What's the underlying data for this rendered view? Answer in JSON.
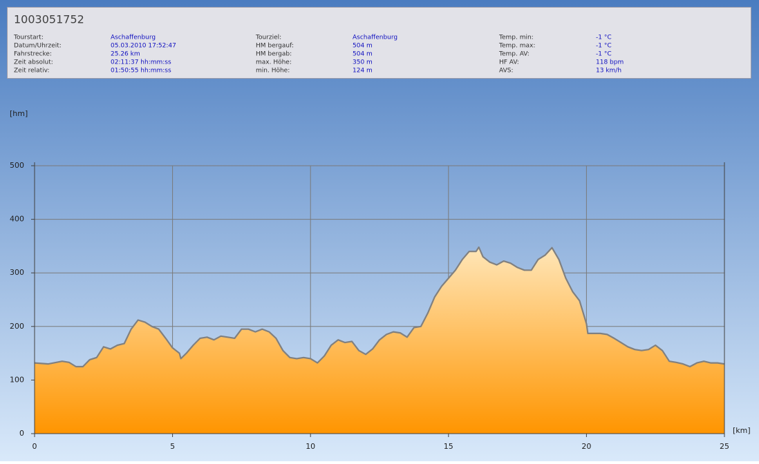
{
  "header": {
    "title": "1003051752",
    "info": [
      [
        {
          "label": "Tourstart:",
          "value": "Aschaffenburg"
        },
        {
          "label": "Datum/Uhrzeit:",
          "value": "05.03.2010 17:52:47"
        },
        {
          "label": "Fahrstrecke:",
          "value": "25.26 km"
        },
        {
          "label": "Zeit absolut:",
          "value": "02:11:37 hh:mm:ss"
        },
        {
          "label": "Zeit relativ:",
          "value": "01:50:55 hh:mm:ss"
        }
      ],
      [
        {
          "label": "Tourziel:",
          "value": "Aschaffenburg"
        },
        {
          "label": "HM bergauf:",
          "value": "504 m"
        },
        {
          "label": "HM bergab:",
          "value": "504 m"
        },
        {
          "label": "max. Höhe:",
          "value": "350 m"
        },
        {
          "label": "min. Höhe:",
          "value": "124 m"
        }
      ],
      [
        {
          "label": "Temp. min:",
          "value": "-1 °C"
        },
        {
          "label": "Temp. max:",
          "value": "-1 °C"
        },
        {
          "label": "Temp. AV:",
          "value": "-1 °C"
        },
        {
          "label": "HF AV:",
          "value": "118 bpm"
        },
        {
          "label": "AVS:",
          "value": "13 km/h"
        }
      ]
    ]
  },
  "chart_data": {
    "type": "area",
    "y_label": "[hm]",
    "x_label": "[km]",
    "x": [
      0,
      0.5,
      1,
      1.25,
      1.5,
      1.75,
      2,
      2.25,
      2.5,
      2.75,
      3,
      3.25,
      3.5,
      3.75,
      4,
      4.25,
      4.5,
      4.75,
      5,
      5.25,
      5.3,
      5.5,
      5.75,
      6,
      6.25,
      6.5,
      6.75,
      7,
      7.25,
      7.5,
      7.75,
      8,
      8.25,
      8.5,
      8.75,
      9,
      9.25,
      9.5,
      9.75,
      10,
      10.25,
      10.5,
      10.75,
      11,
      11.25,
      11.5,
      11.75,
      12,
      12.25,
      12.5,
      12.75,
      13,
      13.25,
      13.5,
      13.75,
      14,
      14.25,
      14.5,
      14.75,
      15,
      15.25,
      15.5,
      15.75,
      16,
      16.1,
      16.25,
      16.5,
      16.75,
      17,
      17.25,
      17.5,
      17.75,
      18,
      18.25,
      18.5,
      18.75,
      19,
      19.25,
      19.5,
      19.75,
      20,
      20.05,
      20.5,
      20.75,
      21,
      21.25,
      21.5,
      21.75,
      22,
      22.25,
      22.5,
      22.75,
      23,
      23.25,
      23.5,
      23.75,
      24,
      24.25,
      24.5,
      24.75,
      25
    ],
    "values": [
      132,
      130,
      135,
      133,
      125,
      125,
      138,
      142,
      162,
      158,
      165,
      168,
      195,
      212,
      208,
      200,
      195,
      178,
      160,
      150,
      140,
      150,
      165,
      178,
      180,
      175,
      182,
      180,
      178,
      195,
      195,
      190,
      195,
      190,
      178,
      155,
      142,
      140,
      142,
      140,
      132,
      145,
      165,
      175,
      170,
      172,
      155,
      148,
      158,
      175,
      185,
      190,
      188,
      180,
      198,
      200,
      225,
      255,
      275,
      290,
      305,
      325,
      340,
      340,
      348,
      330,
      320,
      315,
      322,
      318,
      310,
      305,
      305,
      325,
      333,
      347,
      325,
      290,
      265,
      248,
      205,
      187,
      187,
      185,
      178,
      170,
      162,
      157,
      155,
      157,
      165,
      155,
      135,
      133,
      130,
      125,
      132,
      135,
      132,
      132,
      130
    ],
    "color": "#ff9900",
    "line_color": "#808080",
    "xlim": [
      0,
      25
    ],
    "xticks": [
      0,
      5,
      10,
      15,
      20,
      25
    ],
    "ylim": [
      0,
      500
    ],
    "yticks": [
      0,
      100,
      200,
      300,
      400,
      500
    ],
    "grid": true
  }
}
